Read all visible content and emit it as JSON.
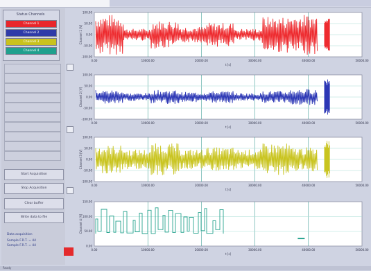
{
  "left_panel": {
    "group_title": "Status Channels",
    "channels": [
      {
        "label": "Channel 1",
        "color": "#e8262b"
      },
      {
        "label": "Channel 2",
        "color": "#2e3aa8"
      },
      {
        "label": "Channel 3",
        "color": "#c9c21e"
      },
      {
        "label": "Channel 4",
        "color": "#1fa08e"
      }
    ],
    "buttons": [
      "Start Acquisition",
      "Stop Acquisition",
      "Clear buffer",
      "Write data to file"
    ],
    "info_title": "Data acquisition",
    "info_lines": [
      "Sample   F.R.T. = 44",
      "Sample   F.R.T. = 44"
    ]
  },
  "colors": {
    "ch1": "#ee2b2f",
    "ch2": "#2c37b5",
    "ch3": "#c9c41f",
    "ch4": "#27a38f"
  },
  "charts": [
    {
      "name": "channel-1-plot",
      "ylabel": "Channel 1 [V]",
      "yticks": [
        "100.00",
        "50.00",
        "0.00",
        "-50.00",
        "-100.00"
      ],
      "xticks": [
        "0.00",
        "10000.00",
        "20000.00",
        "30000.00",
        "40000.00",
        "50000.00"
      ],
      "xlabel": "t [s]"
    },
    {
      "name": "channel-2-plot",
      "ylabel": "Channel 2 [V]",
      "yticks": [
        "100.00",
        "50.00",
        "0.00",
        "-50.00",
        "-100.00"
      ],
      "xticks": [
        "0.00",
        "10000.00",
        "20000.00",
        "30000.00",
        "40000.00",
        "50000.00"
      ],
      "xlabel": "t [s]"
    },
    {
      "name": "channel-3-plot",
      "ylabel": "Channel 3 [V]",
      "yticks": [
        "100.00",
        "50.00",
        "0.00",
        "-50.00",
        "-100.00"
      ],
      "xticks": [
        "0.00",
        "10000.00",
        "20000.00",
        "30000.00",
        "40000.00",
        "50000.00"
      ],
      "xlabel": "t [s]"
    },
    {
      "name": "channel-4-plot",
      "ylabel": "Channel 4 [V]",
      "yticks": [
        "150.00",
        "100.00",
        "50.00",
        "0.00"
      ],
      "xticks": [
        "0.00",
        "10000.00",
        "20000.00",
        "30000.00",
        "40000.00",
        "50000.00"
      ],
      "xlabel": "t [s]"
    }
  ],
  "status_bar": "Ready"
}
